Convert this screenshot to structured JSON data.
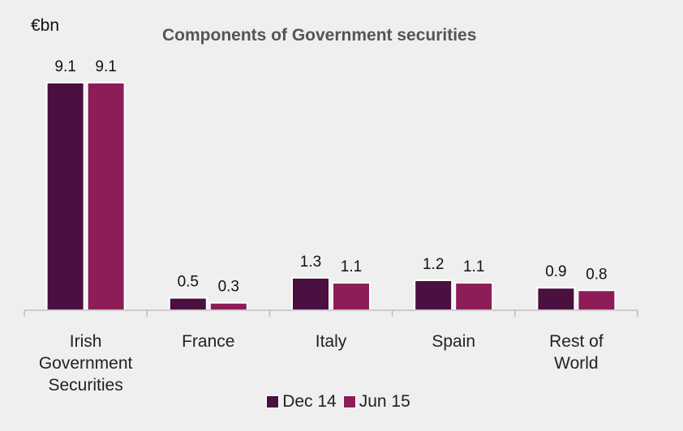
{
  "unit_label": "€bn",
  "chart_data": {
    "type": "bar",
    "title": "Components of Government securities",
    "ylabel": "€bn",
    "xlabel": "",
    "categories": [
      [
        "Irish",
        "Government",
        "Securities"
      ],
      [
        "France"
      ],
      [
        "Italy"
      ],
      [
        "Spain"
      ],
      [
        "Rest of",
        "World"
      ]
    ],
    "series": [
      {
        "name": "Dec 14",
        "color": "#4a1040",
        "values": [
          9.1,
          0.5,
          1.3,
          1.2,
          0.9
        ]
      },
      {
        "name": "Jun 15",
        "color": "#8c1d57",
        "values": [
          9.1,
          0.3,
          1.1,
          1.1,
          0.8
        ]
      }
    ],
    "value_labels": [
      [
        "9.1",
        "0.5",
        "1.3",
        "1.2",
        "0.9"
      ],
      [
        "9.1",
        "0.3",
        "1.1",
        "1.1",
        "0.8"
      ]
    ],
    "ylim": [
      0,
      9.1
    ],
    "grid": false,
    "legend_position": "bottom"
  }
}
